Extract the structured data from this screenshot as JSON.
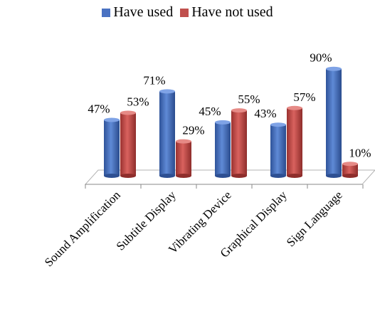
{
  "chart_data": {
    "type": "bar",
    "categories": [
      "Sound Amplification",
      "Subtitle Display",
      "Vibrating Device",
      "Graphical Display",
      "Sign Language"
    ],
    "series": [
      {
        "name": "Have used",
        "values": [
          47,
          71,
          45,
          43,
          90
        ],
        "color": "#4a72c2"
      },
      {
        "name": "Have not used",
        "values": [
          53,
          29,
          55,
          57,
          10
        ],
        "color": "#c0504d"
      }
    ],
    "data_labels": [
      [
        "47%",
        "71%",
        "45%",
        "43%",
        "90%"
      ],
      [
        "53%",
        "29%",
        "55%",
        "57%",
        "10%"
      ]
    ],
    "title": "",
    "xlabel": "",
    "ylabel": "",
    "ylim": [
      0,
      100
    ],
    "grid": false,
    "legend_position": "top-center",
    "style": "3d-cylinder"
  }
}
